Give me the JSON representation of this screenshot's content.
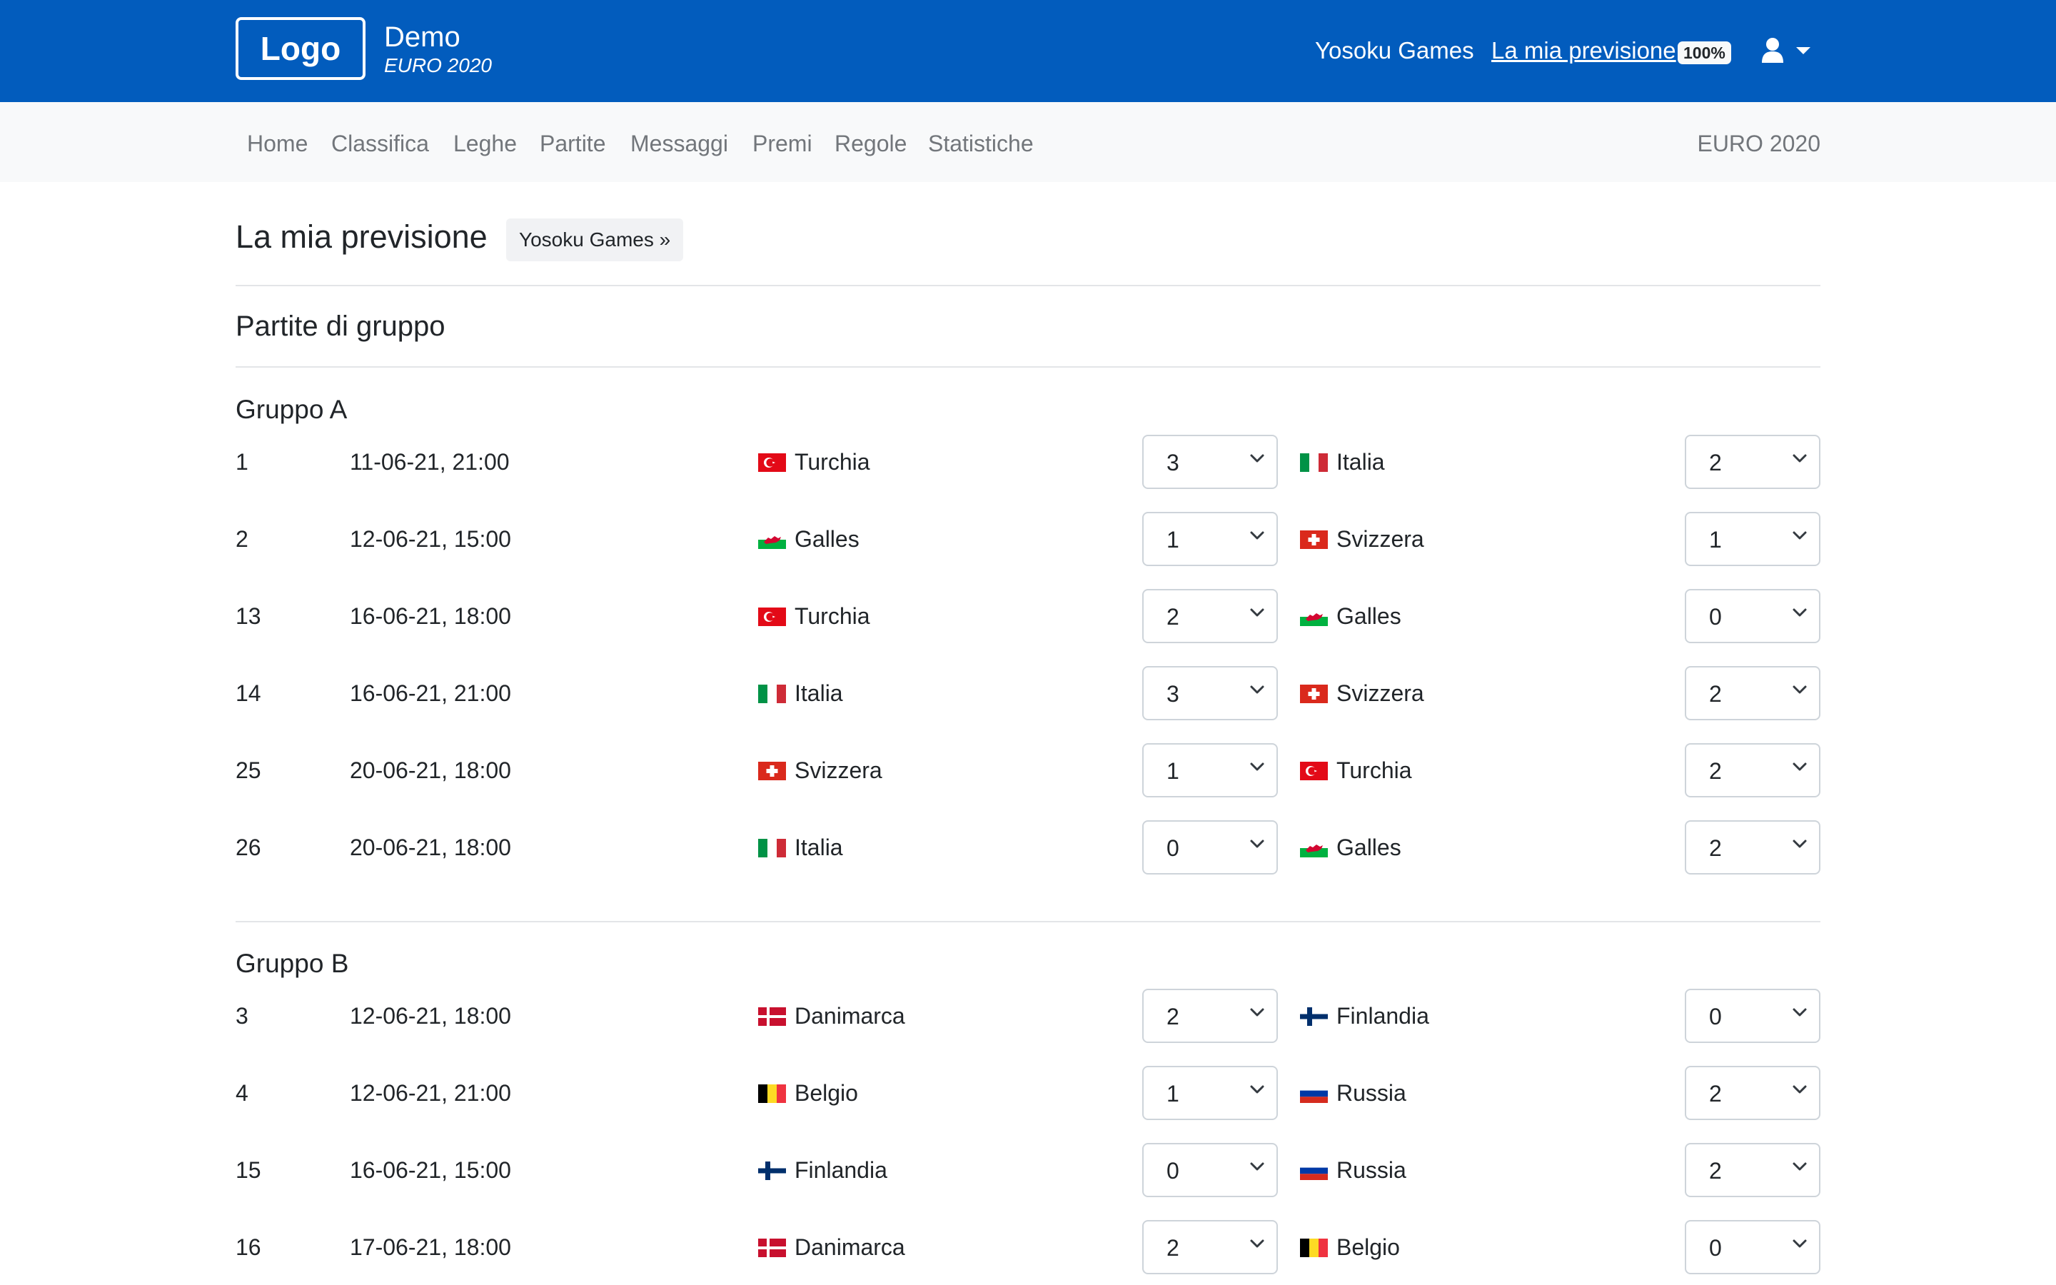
{
  "header": {
    "logo_text": "Logo",
    "brand_title": "Demo",
    "brand_subtitle": "EURO 2020",
    "links": {
      "games": "Yosoku Games",
      "prediction": "La mia previsione",
      "progress_badge": "100%"
    },
    "user_icon": "user-icon",
    "colors": {
      "primary": "#025cbd",
      "secondary_nav_bg": "#f8f9fa"
    }
  },
  "subnav": {
    "items": [
      "Home",
      "Classifica",
      "Leghe",
      "Partite",
      "Messaggi",
      "Premi",
      "Regole",
      "Statistiche"
    ],
    "tournament": "EURO 2020"
  },
  "main": {
    "title": "La mia previsione",
    "games_button": "Yosoku Games »",
    "section_title": "Partite di gruppo",
    "groups": [
      {
        "name": "Gruppo A",
        "matches": [
          {
            "num": "1",
            "datetime": "11-06-21, 21:00",
            "home": "Turchia",
            "home_flag": "turkey",
            "home_score": "3",
            "away": "Italia",
            "away_flag": "italy",
            "away_score": "2"
          },
          {
            "num": "2",
            "datetime": "12-06-21, 15:00",
            "home": "Galles",
            "home_flag": "wales",
            "home_score": "1",
            "away": "Svizzera",
            "away_flag": "switzerland",
            "away_score": "1"
          },
          {
            "num": "13",
            "datetime": "16-06-21, 18:00",
            "home": "Turchia",
            "home_flag": "turkey",
            "home_score": "2",
            "away": "Galles",
            "away_flag": "wales",
            "away_score": "0"
          },
          {
            "num": "14",
            "datetime": "16-06-21, 21:00",
            "home": "Italia",
            "home_flag": "italy",
            "home_score": "3",
            "away": "Svizzera",
            "away_flag": "switzerland",
            "away_score": "2"
          },
          {
            "num": "25",
            "datetime": "20-06-21, 18:00",
            "home": "Svizzera",
            "home_flag": "switzerland",
            "home_score": "1",
            "away": "Turchia",
            "away_flag": "turkey",
            "away_score": "2"
          },
          {
            "num": "26",
            "datetime": "20-06-21, 18:00",
            "home": "Italia",
            "home_flag": "italy",
            "home_score": "0",
            "away": "Galles",
            "away_flag": "wales",
            "away_score": "2"
          }
        ]
      },
      {
        "name": "Gruppo B",
        "matches": [
          {
            "num": "3",
            "datetime": "12-06-21, 18:00",
            "home": "Danimarca",
            "home_flag": "denmark",
            "home_score": "2",
            "away": "Finlandia",
            "away_flag": "finland",
            "away_score": "0"
          },
          {
            "num": "4",
            "datetime": "12-06-21, 21:00",
            "home": "Belgio",
            "home_flag": "belgium",
            "home_score": "1",
            "away": "Russia",
            "away_flag": "russia",
            "away_score": "2"
          },
          {
            "num": "15",
            "datetime": "16-06-21, 15:00",
            "home": "Finlandia",
            "home_flag": "finland",
            "home_score": "0",
            "away": "Russia",
            "away_flag": "russia",
            "away_score": "2"
          },
          {
            "num": "16",
            "datetime": "17-06-21, 18:00",
            "home": "Danimarca",
            "home_flag": "denmark",
            "home_score": "2",
            "away": "Belgio",
            "away_flag": "belgium",
            "away_score": "0"
          }
        ]
      }
    ]
  }
}
